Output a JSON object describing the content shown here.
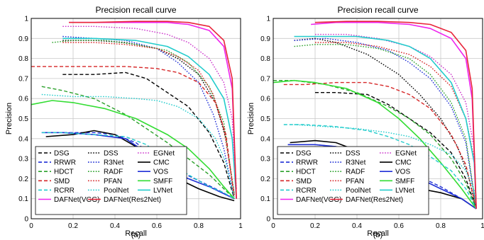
{
  "chart_data": [
    {
      "type": "line",
      "panel_label": "(a)",
      "title": "Precision recall curve",
      "xlabel": "Recall",
      "ylabel": "Precision",
      "xlim": [
        0,
        1
      ],
      "ylim": [
        0,
        1
      ],
      "xticks": [
        "0",
        "0.2",
        "0.4",
        "0.6",
        "0.8",
        "1"
      ],
      "yticks": [
        "0",
        "0.1",
        "0.2",
        "0.3",
        "0.4",
        "0.5",
        "0.6",
        "0.7",
        "0.8",
        "0.9",
        "1"
      ],
      "grid": true,
      "legend_position": "bottom-left",
      "series": [
        {
          "name": "DSG",
          "color": "#000000",
          "dash": "dash",
          "x": [
            0.15,
            0.3,
            0.45,
            0.55,
            0.65,
            0.75,
            0.85,
            0.92,
            0.97
          ],
          "y": [
            0.72,
            0.72,
            0.73,
            0.7,
            0.63,
            0.56,
            0.43,
            0.28,
            0.1
          ]
        },
        {
          "name": "DSS",
          "color": "#000000",
          "dash": "dot",
          "x": [
            0.15,
            0.3,
            0.45,
            0.6,
            0.7,
            0.8,
            0.88,
            0.93,
            0.97
          ],
          "y": [
            0.89,
            0.89,
            0.88,
            0.85,
            0.8,
            0.72,
            0.58,
            0.4,
            0.12
          ]
        },
        {
          "name": "EGNet",
          "color": "#cc33cc",
          "dash": "dot",
          "x": [
            0.15,
            0.3,
            0.5,
            0.65,
            0.75,
            0.85,
            0.92,
            0.96,
            0.98
          ],
          "y": [
            0.96,
            0.96,
            0.95,
            0.92,
            0.88,
            0.8,
            0.68,
            0.5,
            0.15
          ]
        },
        {
          "name": "RRWR",
          "color": "#1f2fd6",
          "dash": "dash",
          "x": [
            0.1,
            0.2,
            0.3,
            0.4,
            0.5,
            0.6,
            0.7,
            0.8,
            0.9,
            0.97
          ],
          "y": [
            0.43,
            0.43,
            0.43,
            0.42,
            0.38,
            0.3,
            0.24,
            0.19,
            0.14,
            0.1
          ]
        },
        {
          "name": "R3Net",
          "color": "#1f2fd6",
          "dash": "dot",
          "x": [
            0.15,
            0.3,
            0.45,
            0.6,
            0.7,
            0.8,
            0.87,
            0.92,
            0.97
          ],
          "y": [
            0.91,
            0.9,
            0.89,
            0.85,
            0.78,
            0.68,
            0.52,
            0.35,
            0.1
          ]
        },
        {
          "name": "CMC",
          "color": "#000000",
          "dash": "solid",
          "x": [
            0.07,
            0.2,
            0.3,
            0.4,
            0.5,
            0.6,
            0.7,
            0.8,
            0.9,
            0.97
          ],
          "y": [
            0.41,
            0.42,
            0.44,
            0.42,
            0.36,
            0.28,
            0.2,
            0.15,
            0.11,
            0.09
          ]
        },
        {
          "name": "HDCT",
          "color": "#2aa02a",
          "dash": "dash",
          "x": [
            0.05,
            0.15,
            0.3,
            0.45,
            0.55,
            0.65,
            0.75,
            0.85,
            0.92,
            0.97
          ],
          "y": [
            0.66,
            0.64,
            0.6,
            0.52,
            0.45,
            0.38,
            0.3,
            0.22,
            0.15,
            0.1
          ]
        },
        {
          "name": "RADF",
          "color": "#2aa02a",
          "dash": "dot",
          "x": [
            0.1,
            0.2,
            0.35,
            0.5,
            0.65,
            0.75,
            0.85,
            0.92,
            0.97
          ],
          "y": [
            0.88,
            0.89,
            0.89,
            0.87,
            0.84,
            0.78,
            0.66,
            0.48,
            0.12
          ]
        },
        {
          "name": "VOS",
          "color": "#1f2fd6",
          "dash": "solid",
          "x": [
            0.05,
            0.15,
            0.3,
            0.45,
            0.55,
            0.65,
            0.75,
            0.85,
            0.93,
            0.97
          ],
          "y": [
            0.43,
            0.43,
            0.42,
            0.4,
            0.33,
            0.25,
            0.2,
            0.16,
            0.12,
            0.1
          ]
        },
        {
          "name": "SMD",
          "color": "#d62728",
          "dash": "dash",
          "x": [
            0.0,
            0.15,
            0.3,
            0.45,
            0.6,
            0.7,
            0.8,
            0.88,
            0.93,
            0.97
          ],
          "y": [
            0.76,
            0.76,
            0.76,
            0.76,
            0.75,
            0.73,
            0.68,
            0.58,
            0.42,
            0.1
          ]
        },
        {
          "name": "PFAN",
          "color": "#d62728",
          "dash": "dot",
          "x": [
            0.15,
            0.3,
            0.45,
            0.6,
            0.7,
            0.8,
            0.87,
            0.92,
            0.97
          ],
          "y": [
            0.88,
            0.88,
            0.87,
            0.85,
            0.81,
            0.74,
            0.62,
            0.45,
            0.12
          ]
        },
        {
          "name": "SMFF",
          "color": "#33dd33",
          "dash": "solid",
          "x": [
            0.0,
            0.1,
            0.2,
            0.35,
            0.5,
            0.65,
            0.75,
            0.85,
            0.92,
            0.97
          ],
          "y": [
            0.57,
            0.59,
            0.58,
            0.55,
            0.5,
            0.42,
            0.35,
            0.25,
            0.16,
            0.1
          ]
        },
        {
          "name": "RCRR",
          "color": "#22cccc",
          "dash": "dash",
          "x": [
            0.05,
            0.15,
            0.3,
            0.45,
            0.55,
            0.65,
            0.75,
            0.85,
            0.92,
            0.97
          ],
          "y": [
            0.43,
            0.43,
            0.42,
            0.41,
            0.37,
            0.29,
            0.22,
            0.16,
            0.13,
            0.1
          ]
        },
        {
          "name": "PoolNet",
          "color": "#22cccc",
          "dash": "dot",
          "x": [
            0.05,
            0.2,
            0.35,
            0.5,
            0.6,
            0.7,
            0.8,
            0.88,
            0.93,
            0.97
          ],
          "y": [
            0.62,
            0.61,
            0.61,
            0.6,
            0.59,
            0.56,
            0.5,
            0.4,
            0.28,
            0.1
          ]
        },
        {
          "name": "LVNet",
          "color": "#22cccc",
          "dash": "solid",
          "x": [
            0.15,
            0.3,
            0.5,
            0.65,
            0.75,
            0.85,
            0.92,
            0.96,
            0.98
          ],
          "y": [
            0.9,
            0.9,
            0.89,
            0.86,
            0.81,
            0.72,
            0.6,
            0.4,
            0.1
          ]
        },
        {
          "name": "DAFNet(VGG)",
          "color": "#ee22ee",
          "dash": "solid",
          "x": [
            0.18,
            0.3,
            0.5,
            0.65,
            0.75,
            0.85,
            0.92,
            0.96,
            0.98
          ],
          "y": [
            0.98,
            0.98,
            0.98,
            0.98,
            0.97,
            0.94,
            0.86,
            0.65,
            0.1
          ]
        },
        {
          "name": "DAFNet(Res2Net)",
          "color": "#e8243a",
          "dash": "solid",
          "x": [
            0.18,
            0.3,
            0.5,
            0.65,
            0.75,
            0.85,
            0.92,
            0.96,
            0.98
          ],
          "y": [
            0.98,
            0.98,
            0.985,
            0.985,
            0.98,
            0.96,
            0.89,
            0.7,
            0.1
          ]
        }
      ]
    },
    {
      "type": "line",
      "panel_label": "(b)",
      "title": "Precision recall curve",
      "xlabel": "Recall",
      "ylabel": "Precision",
      "xlim": [
        0,
        1
      ],
      "ylim": [
        0,
        1
      ],
      "xticks": [
        "0",
        "0.2",
        "0.4",
        "0.6",
        "0.8",
        "1"
      ],
      "yticks": [
        "0",
        "0.1",
        "0.2",
        "0.3",
        "0.4",
        "0.5",
        "0.6",
        "0.7",
        "0.8",
        "0.9",
        "1"
      ],
      "grid": true,
      "legend_position": "bottom-left",
      "series": [
        {
          "name": "DSG",
          "color": "#000000",
          "dash": "dash",
          "x": [
            0.2,
            0.3,
            0.45,
            0.55,
            0.65,
            0.75,
            0.85,
            0.92,
            0.97
          ],
          "y": [
            0.63,
            0.63,
            0.62,
            0.57,
            0.5,
            0.43,
            0.33,
            0.2,
            0.05
          ]
        },
        {
          "name": "DSS",
          "color": "#000000",
          "dash": "dot",
          "x": [
            0.1,
            0.2,
            0.3,
            0.45,
            0.6,
            0.7,
            0.8,
            0.88,
            0.93,
            0.97
          ],
          "y": [
            0.89,
            0.9,
            0.88,
            0.82,
            0.72,
            0.62,
            0.5,
            0.36,
            0.22,
            0.05
          ]
        },
        {
          "name": "EGNet",
          "color": "#cc33cc",
          "dash": "dot",
          "x": [
            0.2,
            0.35,
            0.5,
            0.65,
            0.75,
            0.85,
            0.92,
            0.96,
            0.97
          ],
          "y": [
            0.92,
            0.92,
            0.9,
            0.86,
            0.81,
            0.72,
            0.58,
            0.35,
            0.05
          ]
        },
        {
          "name": "RRWR",
          "color": "#1f2fd6",
          "dash": "dash",
          "x": [
            0.1,
            0.2,
            0.3,
            0.4,
            0.5,
            0.6,
            0.7,
            0.8,
            0.9,
            0.97
          ],
          "y": [
            0.37,
            0.37,
            0.36,
            0.33,
            0.3,
            0.26,
            0.21,
            0.16,
            0.1,
            0.05
          ]
        },
        {
          "name": "R3Net",
          "color": "#1f2fd6",
          "dash": "dot",
          "x": [
            0.1,
            0.25,
            0.4,
            0.55,
            0.65,
            0.75,
            0.85,
            0.92,
            0.97
          ],
          "y": [
            0.89,
            0.9,
            0.88,
            0.84,
            0.78,
            0.7,
            0.56,
            0.38,
            0.05
          ]
        },
        {
          "name": "CMC",
          "color": "#000000",
          "dash": "solid",
          "x": [
            0.08,
            0.2,
            0.3,
            0.4,
            0.5,
            0.6,
            0.7,
            0.8,
            0.9,
            0.97
          ],
          "y": [
            0.38,
            0.39,
            0.38,
            0.34,
            0.27,
            0.2,
            0.15,
            0.13,
            0.1,
            0.05
          ]
        },
        {
          "name": "HDCT",
          "color": "#2aa02a",
          "dash": "dash",
          "x": [
            0.0,
            0.1,
            0.25,
            0.4,
            0.55,
            0.65,
            0.75,
            0.85,
            0.92,
            0.97
          ],
          "y": [
            0.69,
            0.69,
            0.67,
            0.63,
            0.56,
            0.5,
            0.42,
            0.3,
            0.18,
            0.05
          ]
        },
        {
          "name": "RADF",
          "color": "#2aa02a",
          "dash": "dot",
          "x": [
            0.1,
            0.2,
            0.35,
            0.5,
            0.65,
            0.75,
            0.85,
            0.92,
            0.97
          ],
          "y": [
            0.86,
            0.87,
            0.87,
            0.85,
            0.8,
            0.72,
            0.58,
            0.4,
            0.05
          ]
        },
        {
          "name": "VOS",
          "color": "#1f2fd6",
          "dash": "solid",
          "x": [
            0.07,
            0.2,
            0.3,
            0.4,
            0.5,
            0.6,
            0.7,
            0.8,
            0.9,
            0.97
          ],
          "y": [
            0.37,
            0.37,
            0.36,
            0.33,
            0.29,
            0.24,
            0.2,
            0.15,
            0.1,
            0.05
          ]
        },
        {
          "name": "SMD",
          "color": "#d62728",
          "dash": "dash",
          "x": [
            0.05,
            0.15,
            0.3,
            0.45,
            0.55,
            0.65,
            0.75,
            0.85,
            0.92,
            0.97
          ],
          "y": [
            0.67,
            0.67,
            0.68,
            0.68,
            0.66,
            0.62,
            0.55,
            0.42,
            0.27,
            0.05
          ]
        },
        {
          "name": "PFAN",
          "color": "#d62728",
          "dash": "dot",
          "x": [
            0.2,
            0.35,
            0.5,
            0.65,
            0.75,
            0.85,
            0.92,
            0.96,
            0.97
          ],
          "y": [
            0.88,
            0.88,
            0.86,
            0.82,
            0.76,
            0.66,
            0.5,
            0.3,
            0.05
          ]
        },
        {
          "name": "SMFF",
          "color": "#33dd33",
          "dash": "solid",
          "x": [
            0.0,
            0.1,
            0.2,
            0.35,
            0.5,
            0.6,
            0.7,
            0.8,
            0.9,
            0.97
          ],
          "y": [
            0.68,
            0.69,
            0.68,
            0.65,
            0.58,
            0.5,
            0.4,
            0.28,
            0.15,
            0.05
          ]
        },
        {
          "name": "RCRR",
          "color": "#22cccc",
          "dash": "dash",
          "x": [
            0.05,
            0.15,
            0.3,
            0.45,
            0.55,
            0.65,
            0.75,
            0.85,
            0.92,
            0.97
          ],
          "y": [
            0.47,
            0.47,
            0.46,
            0.44,
            0.41,
            0.37,
            0.31,
            0.24,
            0.15,
            0.05
          ]
        },
        {
          "name": "PoolNet",
          "color": "#22cccc",
          "dash": "dot",
          "x": [
            0.1,
            0.25,
            0.4,
            0.55,
            0.65,
            0.75,
            0.85,
            0.92,
            0.96,
            0.97
          ],
          "y": [
            0.47,
            0.46,
            0.45,
            0.43,
            0.41,
            0.37,
            0.32,
            0.24,
            0.14,
            0.05
          ]
        },
        {
          "name": "LVNet",
          "color": "#22cccc",
          "dash": "solid",
          "x": [
            0.1,
            0.25,
            0.4,
            0.55,
            0.65,
            0.75,
            0.85,
            0.92,
            0.96,
            0.97
          ],
          "y": [
            0.91,
            0.91,
            0.91,
            0.89,
            0.86,
            0.8,
            0.68,
            0.5,
            0.28,
            0.05
          ]
        },
        {
          "name": "DAFNet(VGG)",
          "color": "#ee22ee",
          "dash": "solid",
          "x": [
            0.18,
            0.3,
            0.5,
            0.65,
            0.75,
            0.85,
            0.92,
            0.95,
            0.97
          ],
          "y": [
            0.97,
            0.98,
            0.98,
            0.97,
            0.95,
            0.9,
            0.8,
            0.6,
            0.05
          ]
        },
        {
          "name": "DAFNet(Res2Net)",
          "color": "#e8243a",
          "dash": "solid",
          "x": [
            0.2,
            0.35,
            0.5,
            0.65,
            0.75,
            0.85,
            0.92,
            0.95,
            0.97
          ],
          "y": [
            0.98,
            0.985,
            0.985,
            0.98,
            0.97,
            0.93,
            0.84,
            0.65,
            0.05
          ]
        }
      ]
    }
  ]
}
